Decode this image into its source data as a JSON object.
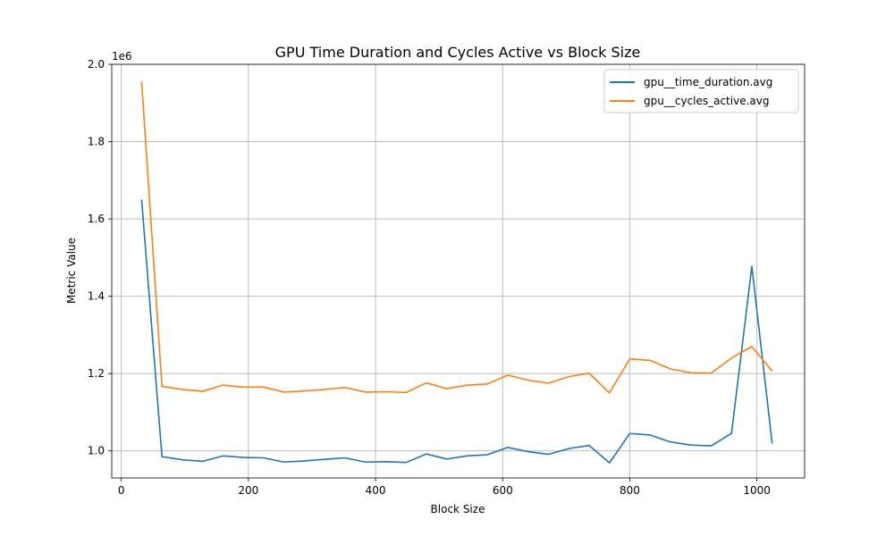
{
  "chart_data": {
    "type": "line",
    "title": "GPU Time Duration and Cycles Active vs Block Size",
    "xlabel": "Block Size",
    "ylabel": "Metric Value",
    "y_offset_label": "1e6",
    "xlim": [
      -15,
      1075
    ],
    "ylim": [
      0.93,
      2.0
    ],
    "x_ticks": [
      0,
      200,
      400,
      600,
      800,
      1000
    ],
    "x_tick_labels": [
      "0",
      "200",
      "400",
      "600",
      "800",
      "1000"
    ],
    "y_ticks": [
      1.0,
      1.2,
      1.4,
      1.6,
      1.8,
      2.0
    ],
    "y_tick_labels": [
      "1.0",
      "1.2",
      "1.4",
      "1.6",
      "1.8",
      "2.0"
    ],
    "grid": true,
    "legend_position": "top-right",
    "x": [
      32,
      64,
      96,
      128,
      160,
      192,
      224,
      256,
      288,
      320,
      352,
      384,
      416,
      448,
      480,
      512,
      544,
      576,
      608,
      640,
      672,
      704,
      736,
      768,
      800,
      832,
      864,
      896,
      928,
      960,
      992,
      1024
    ],
    "series": [
      {
        "name": "gpu__time_duration.avg",
        "color": "#1f77b4",
        "values": [
          1.65,
          0.985,
          0.977,
          0.973,
          0.987,
          0.983,
          0.982,
          0.971,
          0.974,
          0.978,
          0.982,
          0.971,
          0.972,
          0.97,
          0.992,
          0.979,
          0.987,
          0.99,
          1.009,
          0.998,
          0.991,
          1.006,
          1.014,
          0.969,
          1.045,
          1.041,
          1.023,
          1.015,
          1.013,
          1.045,
          1.477,
          1.019
        ]
      },
      {
        "name": "gpu__cycles_active.avg",
        "color": "#ff7f0e",
        "values": [
          1.955,
          1.167,
          1.159,
          1.154,
          1.17,
          1.165,
          1.165,
          1.152,
          1.155,
          1.159,
          1.164,
          1.152,
          1.153,
          1.151,
          1.176,
          1.161,
          1.17,
          1.173,
          1.196,
          1.183,
          1.175,
          1.192,
          1.201,
          1.15,
          1.238,
          1.234,
          1.212,
          1.202,
          1.201,
          1.24,
          1.27,
          1.206
        ]
      }
    ]
  }
}
